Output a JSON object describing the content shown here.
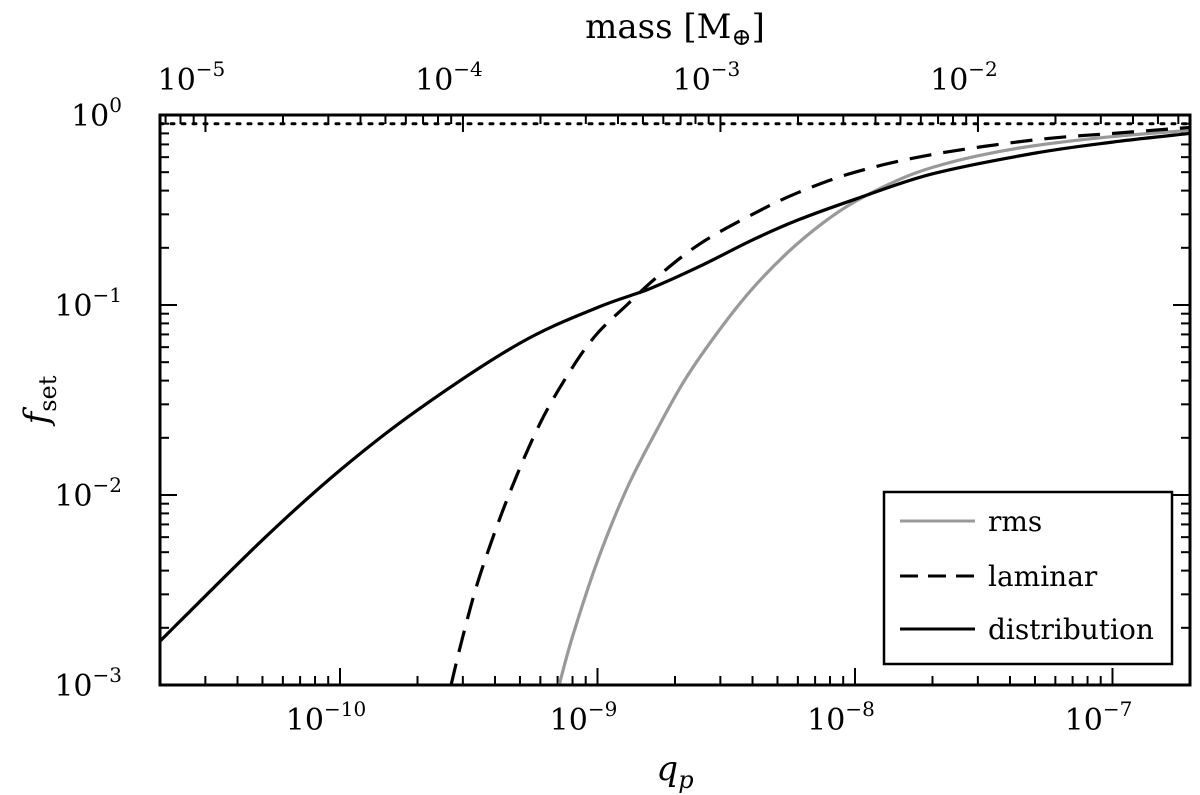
{
  "chart_data": {
    "type": "line",
    "xscale": "log",
    "yscale": "log",
    "xlabel": "q",
    "xlabel_sub": "p",
    "ylabel": "f",
    "ylabel_sub": "set",
    "top_xlabel": "mass [M",
    "top_xlabel_sub": "⊕",
    "top_xlabel_close": "]",
    "xlim": [
      2e-11,
      2e-07
    ],
    "ylim": [
      0.001,
      1.0
    ],
    "xticks": [
      {
        "base": "10",
        "exp": "−10",
        "value": 1e-10
      },
      {
        "base": "10",
        "exp": "−9",
        "value": 1e-09
      },
      {
        "base": "10",
        "exp": "−8",
        "value": 1e-08
      },
      {
        "base": "10",
        "exp": "−7",
        "value": 1e-07
      }
    ],
    "yticks": [
      {
        "base": "10",
        "exp": "−3",
        "value": 0.001
      },
      {
        "base": "10",
        "exp": "−2",
        "value": 0.01
      },
      {
        "base": "10",
        "exp": "−1",
        "value": 0.1
      },
      {
        "base": "10",
        "exp": "0",
        "value": 1.0
      }
    ],
    "top_xticks": [
      {
        "base": "10",
        "exp": "−5",
        "value": 1e-05
      },
      {
        "base": "10",
        "exp": "−4",
        "value": 0.0001
      },
      {
        "base": "10",
        "exp": "−3",
        "value": 0.001
      },
      {
        "base": "10",
        "exp": "−2",
        "value": 0.01
      }
    ],
    "mass_per_q": 333000,
    "reference_line": {
      "y": 0.9,
      "style": "dotted"
    },
    "series": [
      {
        "name": "rms",
        "color": "#999999",
        "style": "solid",
        "x": [
          7.1e-10,
          8e-10,
          1e-09,
          1.3e-09,
          1.7e-09,
          2.2e-09,
          3e-09,
          4e-09,
          5.5e-09,
          7.5e-09,
          1e-08,
          1.5e-08,
          2e-08,
          3e-08,
          5e-08,
          1e-07,
          2e-07
        ],
        "y": [
          0.001,
          0.0018,
          0.0045,
          0.0108,
          0.022,
          0.041,
          0.075,
          0.122,
          0.19,
          0.27,
          0.35,
          0.46,
          0.53,
          0.61,
          0.69,
          0.77,
          0.83
        ]
      },
      {
        "name": "laminar",
        "color": "#000000",
        "style": "dashed",
        "x": [
          2.7e-10,
          3e-10,
          3.5e-10,
          4.5e-10,
          6e-10,
          8e-10,
          1e-09,
          1.3e-09,
          1.7e-09,
          2.5e-09,
          4e-09,
          6e-09,
          1e-08,
          2e-08,
          5e-08,
          1e-07,
          2e-07
        ],
        "y": [
          0.001,
          0.0018,
          0.0038,
          0.0098,
          0.024,
          0.047,
          0.071,
          0.1,
          0.14,
          0.21,
          0.3,
          0.39,
          0.5,
          0.62,
          0.74,
          0.8,
          0.86
        ]
      },
      {
        "name": "distribution",
        "color": "#000000",
        "style": "solid",
        "x": [
          2e-11,
          5e-11,
          1e-10,
          2e-10,
          5e-10,
          1e-09,
          1.6e-09,
          2.5e-09,
          4e-09,
          6e-09,
          1e-08,
          2e-08,
          5e-08,
          1e-07,
          2e-07
        ],
        "y": [
          0.0017,
          0.0058,
          0.0135,
          0.028,
          0.063,
          0.097,
          0.122,
          0.16,
          0.22,
          0.28,
          0.36,
          0.49,
          0.63,
          0.72,
          0.8
        ]
      }
    ],
    "legend": {
      "location": "bottom-right",
      "entries": [
        "rms",
        "laminar",
        "distribution"
      ]
    }
  }
}
